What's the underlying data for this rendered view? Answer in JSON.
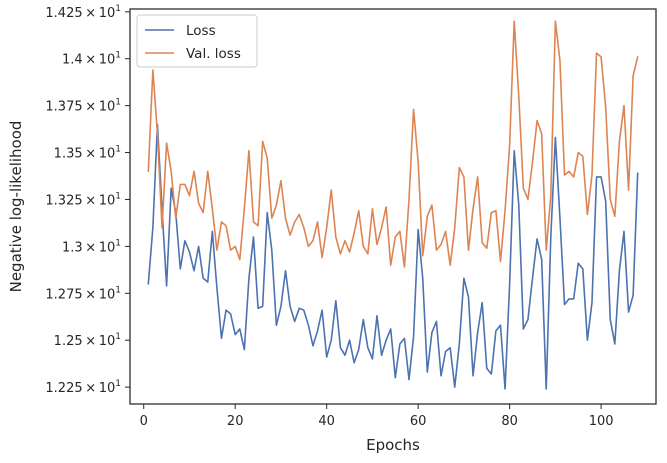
{
  "chart_data": {
    "type": "line",
    "xlabel": "Epochs",
    "ylabel": "Negative log-likelihood",
    "xlim": [
      -3,
      112
    ],
    "ylim": [
      12.16,
      14.265
    ],
    "x_ticks": [
      0,
      20,
      40,
      60,
      80,
      100
    ],
    "x_tick_labels": [
      "0",
      "20",
      "40",
      "60",
      "80",
      "100"
    ],
    "y_ticks": [
      12.25,
      12.5,
      12.75,
      13.0,
      13.25,
      13.5,
      13.75,
      14.0,
      14.25
    ],
    "y_tick_mantissas": [
      "1.225",
      "1.25",
      "1.275",
      "1.3",
      "1.325",
      "1.35",
      "1.375",
      "1.4",
      "1.425"
    ],
    "y_tick_base": "10",
    "y_tick_exponent": "1",
    "y_tick_times": "×",
    "grid": false,
    "legend_position": "top-left",
    "series": [
      {
        "name": "Loss",
        "color": "#4c72b0",
        "x": [
          1,
          2,
          3,
          4,
          5,
          6,
          7,
          8,
          9,
          10,
          11,
          12,
          13,
          14,
          15,
          16,
          17,
          18,
          19,
          20,
          21,
          22,
          23,
          24,
          25,
          26,
          27,
          28,
          29,
          30,
          31,
          32,
          33,
          34,
          35,
          36,
          37,
          38,
          39,
          40,
          41,
          42,
          43,
          44,
          45,
          46,
          47,
          48,
          49,
          50,
          51,
          52,
          53,
          54,
          55,
          56,
          57,
          58,
          59,
          60,
          61,
          62,
          63,
          64,
          65,
          66,
          67,
          68,
          69,
          70,
          71,
          72,
          73,
          74,
          75,
          76,
          77,
          78,
          79,
          80,
          81,
          82,
          83,
          84,
          85,
          86,
          87,
          88,
          89,
          90,
          91,
          92,
          93,
          94,
          95,
          96,
          97,
          98,
          99,
          100,
          101,
          102,
          103,
          104,
          105,
          106,
          107,
          108
        ],
        "values": [
          12.8,
          13.1,
          13.65,
          13.2,
          12.79,
          13.31,
          13.18,
          12.88,
          13.03,
          12.97,
          12.87,
          13.0,
          12.83,
          12.81,
          13.08,
          12.78,
          12.51,
          12.66,
          12.64,
          12.53,
          12.56,
          12.45,
          12.83,
          13.05,
          12.67,
          12.68,
          13.18,
          12.98,
          12.58,
          12.68,
          12.87,
          12.68,
          12.6,
          12.67,
          12.66,
          12.58,
          12.47,
          12.55,
          12.66,
          12.41,
          12.5,
          12.71,
          12.46,
          12.42,
          12.5,
          12.38,
          12.45,
          12.61,
          12.46,
          12.4,
          12.63,
          12.42,
          12.5,
          12.56,
          12.3,
          12.48,
          12.51,
          12.29,
          12.52,
          13.09,
          12.83,
          12.33,
          12.54,
          12.6,
          12.31,
          12.44,
          12.46,
          12.25,
          12.48,
          12.83,
          12.73,
          12.31,
          12.54,
          12.7,
          12.35,
          12.32,
          12.55,
          12.58,
          12.24,
          12.8,
          13.51,
          13.22,
          12.56,
          12.61,
          12.83,
          13.04,
          12.93,
          12.24,
          13.05,
          13.58,
          13.15,
          12.69,
          12.72,
          12.72,
          12.91,
          12.88,
          12.5,
          12.7,
          13.37,
          13.37,
          13.24,
          12.61,
          12.48,
          12.87,
          13.08,
          12.65,
          12.74,
          13.39
        ]
      },
      {
        "name": "Val. loss",
        "color": "#dd8452",
        "x": [
          1,
          2,
          3,
          4,
          5,
          6,
          7,
          8,
          9,
          10,
          11,
          12,
          13,
          14,
          15,
          16,
          17,
          18,
          19,
          20,
          21,
          22,
          23,
          24,
          25,
          26,
          27,
          28,
          29,
          30,
          31,
          32,
          33,
          34,
          35,
          36,
          37,
          38,
          39,
          40,
          41,
          42,
          43,
          44,
          45,
          46,
          47,
          48,
          49,
          50,
          51,
          52,
          53,
          54,
          55,
          56,
          57,
          58,
          59,
          60,
          61,
          62,
          63,
          64,
          65,
          66,
          67,
          68,
          69,
          70,
          71,
          72,
          73,
          74,
          75,
          76,
          77,
          78,
          79,
          80,
          81,
          82,
          83,
          84,
          85,
          86,
          87,
          88,
          89,
          90,
          91,
          92,
          93,
          94,
          95,
          96,
          97,
          98,
          99,
          100,
          101,
          102,
          103,
          104,
          105,
          106,
          107,
          108
        ],
        "values": [
          13.4,
          13.94,
          13.6,
          13.1,
          13.55,
          13.4,
          13.15,
          13.33,
          13.33,
          13.27,
          13.4,
          13.23,
          13.18,
          13.4,
          13.2,
          12.98,
          13.13,
          13.11,
          12.98,
          13.0,
          12.93,
          13.2,
          13.51,
          13.13,
          13.11,
          13.56,
          13.47,
          13.15,
          13.22,
          13.35,
          13.15,
          13.06,
          13.13,
          13.17,
          13.1,
          13.0,
          13.03,
          13.13,
          12.94,
          13.1,
          13.3,
          13.05,
          12.96,
          13.03,
          12.97,
          13.07,
          13.19,
          13.0,
          12.96,
          13.2,
          13.01,
          13.1,
          13.21,
          12.9,
          13.05,
          13.08,
          12.89,
          13.25,
          13.73,
          13.45,
          12.95,
          13.16,
          13.22,
          12.98,
          13.01,
          13.08,
          12.9,
          13.1,
          13.42,
          13.37,
          12.98,
          13.2,
          13.37,
          13.02,
          12.99,
          13.18,
          13.19,
          12.92,
          13.19,
          13.54,
          14.2,
          13.8,
          13.31,
          13.25,
          13.45,
          13.67,
          13.6,
          12.98,
          13.27,
          14.2,
          13.99,
          13.38,
          13.4,
          13.37,
          13.5,
          13.48,
          13.17,
          13.38,
          14.03,
          14.01,
          13.74,
          13.25,
          13.16,
          13.56,
          13.75,
          13.3,
          13.91,
          14.01
        ]
      }
    ]
  }
}
